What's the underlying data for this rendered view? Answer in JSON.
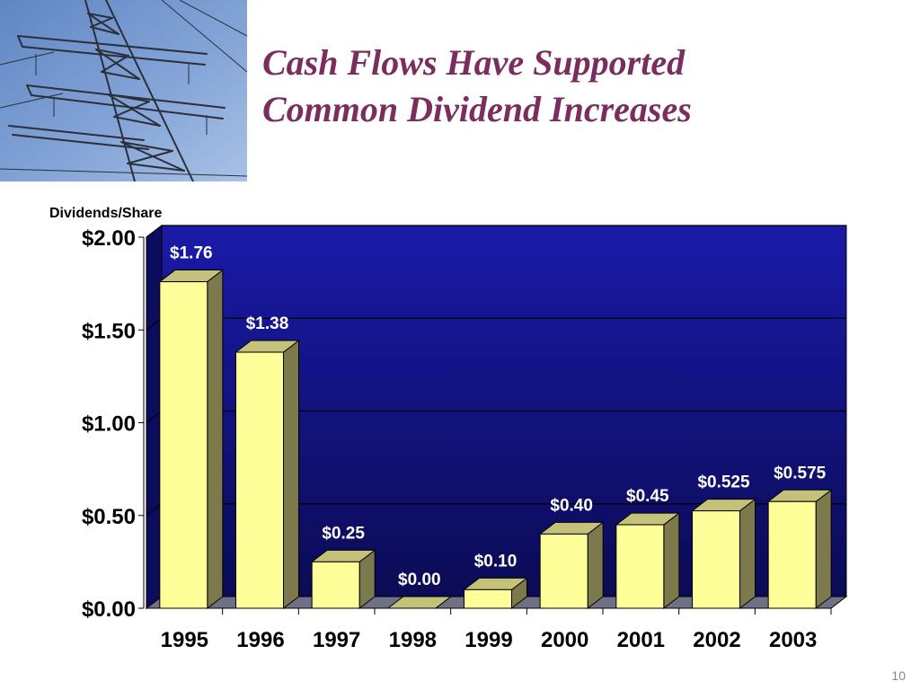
{
  "slide": {
    "title_line1": "Cash Flows Have Supported",
    "title_line2": "Common Dividend Increases",
    "page_number": "10"
  },
  "photo": {
    "subject": "electricity transmission tower against blue sky"
  },
  "colors": {
    "title": "#7a2e5e",
    "plot_background_top": "#1a1aa8",
    "plot_background_bottom": "#0b0b55",
    "bar_front": "#ffff99",
    "bar_side": "#7c7a4c",
    "bar_top": "#c4c27a",
    "data_label": "#ffffff"
  },
  "chart_data": {
    "type": "bar",
    "title": "",
    "ylabel": "Dividends/Share",
    "xlabel": "",
    "categories": [
      "1995",
      "1996",
      "1997",
      "1998",
      "1999",
      "2000",
      "2001",
      "2002",
      "2003"
    ],
    "values": [
      1.76,
      1.38,
      0.25,
      0.0,
      0.1,
      0.4,
      0.45,
      0.525,
      0.575
    ],
    "data_labels": [
      "$1.76",
      "$1.38",
      "$0.25",
      "$0.00",
      "$0.10",
      "$0.40",
      "$0.45",
      "$0.525",
      "$0.575"
    ],
    "y_ticks": [
      0,
      0.5,
      1,
      1.5,
      2
    ],
    "y_tick_labels": [
      "$0.00",
      "$0.50",
      "$1.00",
      "$1.50",
      "$2.00"
    ],
    "ylim": [
      0,
      2
    ],
    "grid": true,
    "style": "3d-column"
  }
}
